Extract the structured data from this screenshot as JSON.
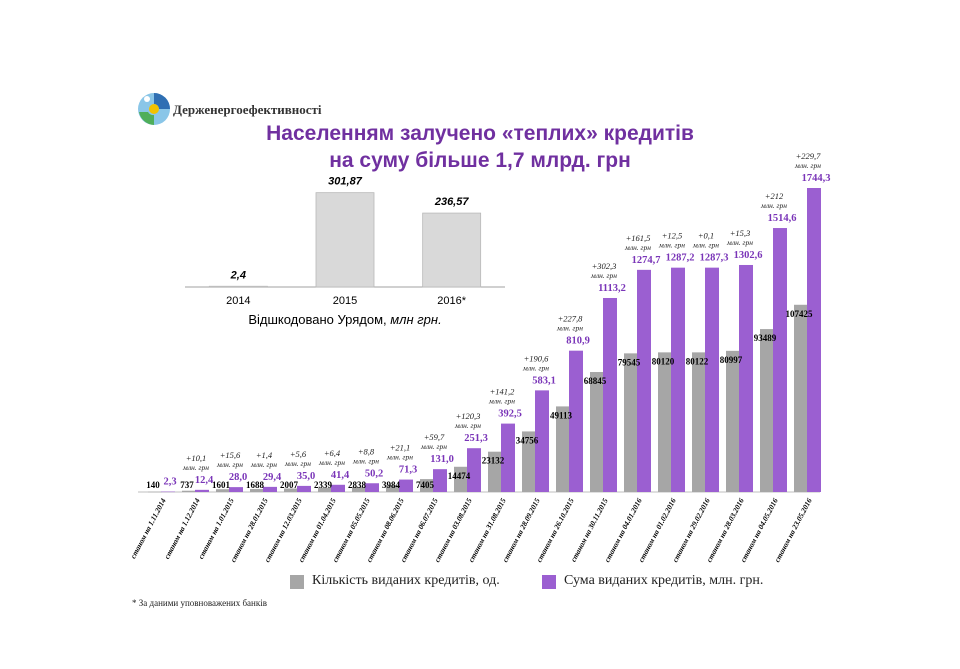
{
  "brand": {
    "name": "Держенергоефективності",
    "logo_colors": [
      "#2f6fb3",
      "#f2c200",
      "#4fae5a",
      "#8ac6e8"
    ]
  },
  "title": {
    "line1": "Населенням залучено «теплих» кредитів",
    "line2": "на суму більше 1,7 млрд. грн"
  },
  "colors": {
    "count": "#a6a6a6",
    "sum": "#9b5fd1",
    "inset_bar": "#d9d9d9",
    "title": "#7030a0"
  },
  "chart_data": [
    {
      "type": "bar",
      "title": "",
      "caption_main": "Відшкодовано Урядом, ",
      "caption_unit": "млн грн.",
      "categories": [
        "2014",
        "2015",
        "2016*"
      ],
      "values": [
        2.4,
        301.87,
        236.57
      ],
      "value_labels": [
        "2,4",
        "301,87",
        "236,57"
      ],
      "ylim": [
        0,
        320
      ],
      "grid": false
    },
    {
      "type": "bar",
      "title": "",
      "categories": [
        "станом на 1.11.2014",
        "станом на 1.12.2014",
        "станом на 1.01.2015",
        "станом на 28.01.2015",
        "станом на 12.03.2015",
        "станом на 01.04.2015",
        "станом на 05.05.2015",
        "станом на 08.06.2015",
        "станом на 06.07.2015",
        "станом на 03.08.2015",
        "станом на 31.08.2015",
        "станом на 28.09.2015",
        "станом на 26.10.2015",
        "станом на 30.11.2015",
        "станом на 04.01.2016",
        "станом на 01.02.2016",
        "станом на 29.02.2016",
        "станом на 28.03.2016",
        "станом на 04.05.2016",
        "станом на 23.05.2016"
      ],
      "series": [
        {
          "name": "Кількість виданих кредитів, од.",
          "values": [
            140,
            737,
            1601,
            1688,
            2007,
            2339,
            2838,
            3984,
            7405,
            14474,
            23132,
            34756,
            49113,
            68845,
            79545,
            80120,
            80122,
            80997,
            93489,
            107425
          ],
          "labels": [
            "140",
            "737",
            "1601",
            "1688",
            "2007",
            "2339",
            "2838",
            "3984",
            "7405",
            "14474",
            "23132",
            "34756",
            "49113",
            "68845",
            "79545",
            "80120",
            "80122",
            "80997",
            "93489",
            "107425"
          ]
        },
        {
          "name": "Сума виданих кредитів, млн. грн.",
          "values": [
            2.3,
            12.4,
            28.0,
            29.4,
            35.0,
            41.4,
            50.2,
            71.3,
            131.0,
            251.3,
            392.5,
            583.1,
            810.9,
            1113.2,
            1274.7,
            1287.2,
            1287.3,
            1302.6,
            1514.6,
            1744.3
          ],
          "labels": [
            "2,3",
            "12,4",
            "28,0",
            "29,4",
            "35,0",
            "41,4",
            "50,2",
            "71,3",
            "131,0",
            "251,3",
            "392,5",
            "583,1",
            "810,9",
            "1113,2",
            "1274,7",
            "1287,2",
            "1287,3",
            "1302,6",
            "1514,6",
            "1744,3"
          ]
        }
      ],
      "increments": [
        "",
        "+10,1",
        "+15,6",
        "+1,4",
        "+5,6",
        "+6,4",
        "+8,8",
        "+21,1",
        "+59,7",
        "+120,3",
        "+141,2",
        "+190,6",
        "+227,8",
        "+302,3",
        "+161,5",
        "+12,5",
        "+0,1",
        "+15,3",
        "+212",
        "+229,7"
      ],
      "increment_unit": "млн. грн",
      "legend_position": "bottom",
      "grid": false
    }
  ],
  "footnote": "* За даними уповноважених банків"
}
